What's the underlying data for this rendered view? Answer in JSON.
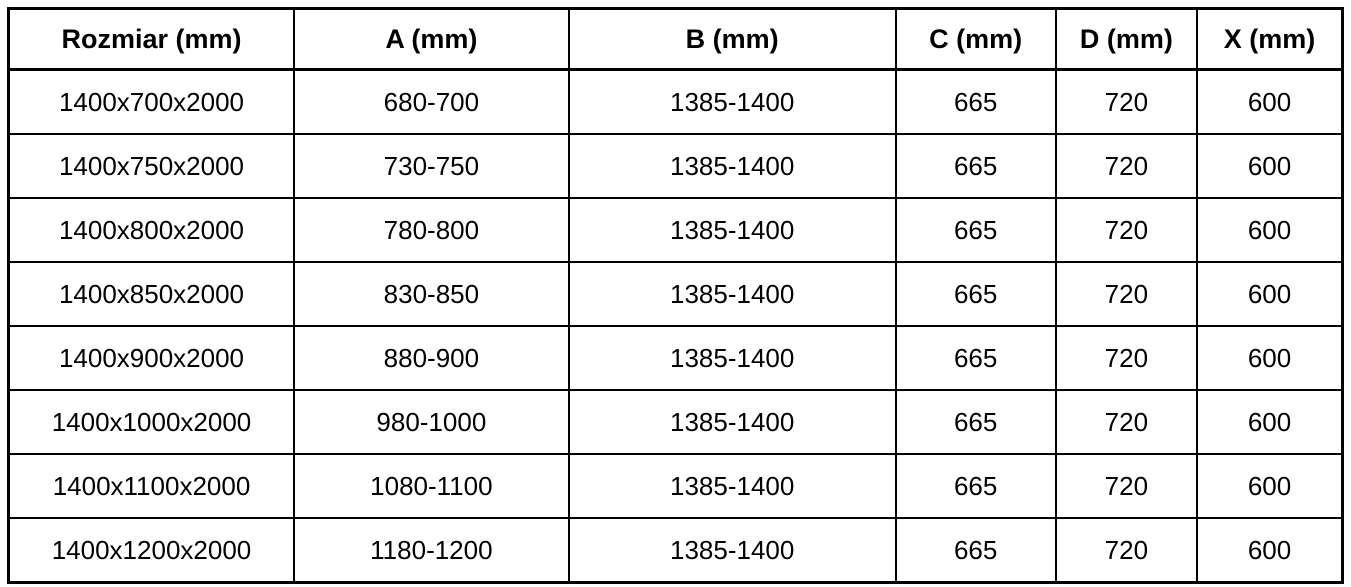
{
  "table": {
    "headers": [
      "Rozmiar (mm)",
      "A (mm)",
      "B (mm)",
      "C (mm)",
      "D (mm)",
      "X (mm)"
    ],
    "rows": [
      [
        "1400x700x2000",
        "680-700",
        "1385-1400",
        "665",
        "720",
        "600"
      ],
      [
        "1400x750x2000",
        "730-750",
        "1385-1400",
        "665",
        "720",
        "600"
      ],
      [
        "1400x800x2000",
        "780-800",
        "1385-1400",
        "665",
        "720",
        "600"
      ],
      [
        "1400x850x2000",
        "830-850",
        "1385-1400",
        "665",
        "720",
        "600"
      ],
      [
        "1400x900x2000",
        "880-900",
        "1385-1400",
        "665",
        "720",
        "600"
      ],
      [
        "1400x1000x2000",
        "980-1000",
        "1385-1400",
        "665",
        "720",
        "600"
      ],
      [
        "1400x1100x2000",
        "1080-1100",
        "1385-1400",
        "665",
        "720",
        "600"
      ],
      [
        "1400x1200x2000",
        "1180-1200",
        "1385-1400",
        "665",
        "720",
        "600"
      ]
    ]
  },
  "colors": {
    "border": "#000000",
    "text": "#000000",
    "background": "#ffffff"
  },
  "chart_data": {
    "type": "table",
    "title": "",
    "columns": [
      "Rozmiar (mm)",
      "A (mm)",
      "B (mm)",
      "C (mm)",
      "D (mm)",
      "X (mm)"
    ],
    "rows": [
      [
        "1400x700x2000",
        "680-700",
        "1385-1400",
        "665",
        "720",
        "600"
      ],
      [
        "1400x750x2000",
        "730-750",
        "1385-1400",
        "665",
        "720",
        "600"
      ],
      [
        "1400x800x2000",
        "780-800",
        "1385-1400",
        "665",
        "720",
        "600"
      ],
      [
        "1400x850x2000",
        "830-850",
        "1385-1400",
        "665",
        "720",
        "600"
      ],
      [
        "1400x900x2000",
        "880-900",
        "1385-1400",
        "665",
        "720",
        "600"
      ],
      [
        "1400x1000x2000",
        "980-1000",
        "1385-1400",
        "665",
        "720",
        "600"
      ],
      [
        "1400x1100x2000",
        "1080-1100",
        "1385-1400",
        "665",
        "720",
        "600"
      ],
      [
        "1400x1200x2000",
        "1180-1200",
        "1385-1400",
        "665",
        "720",
        "600"
      ]
    ]
  }
}
